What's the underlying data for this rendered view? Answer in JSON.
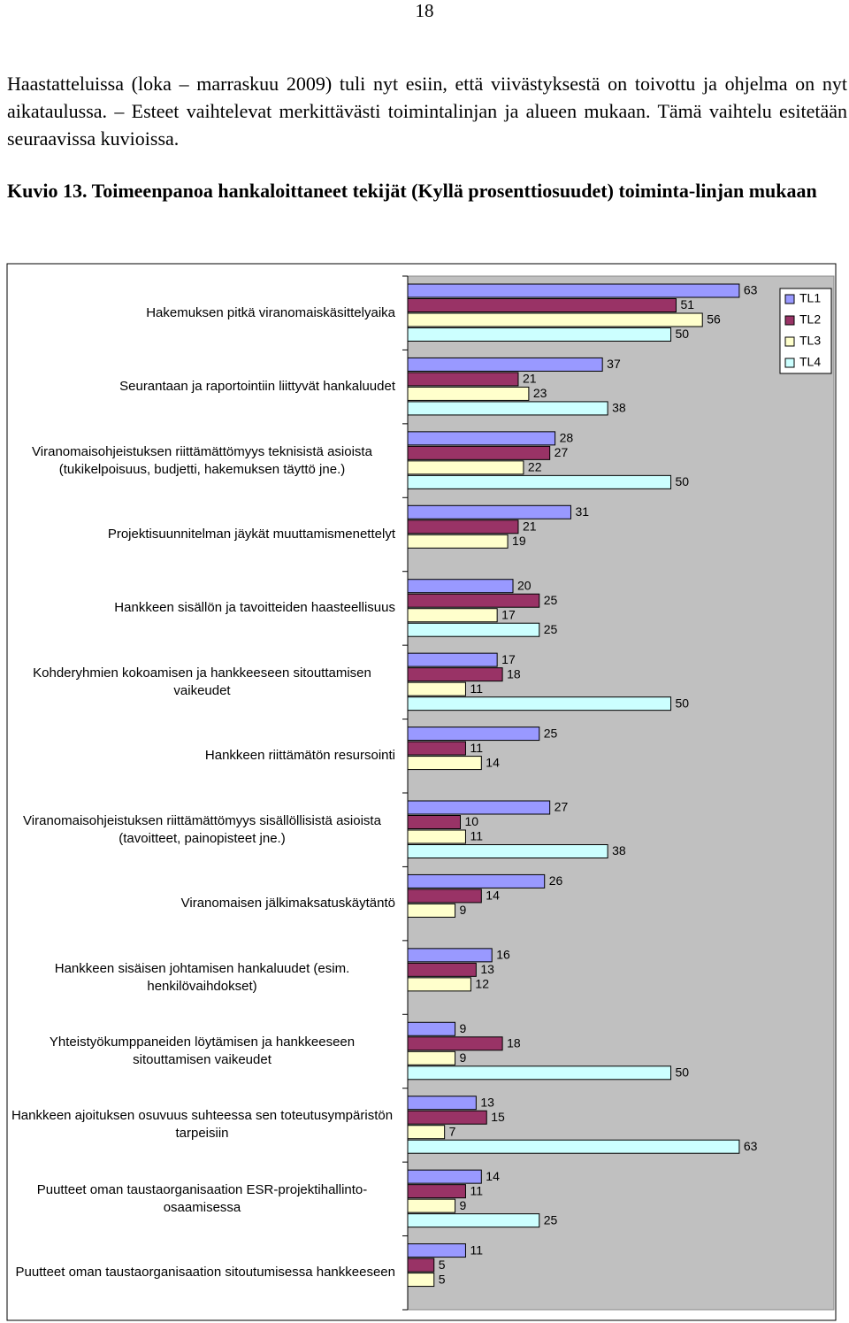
{
  "page_number": "18",
  "paragraph": "Haastatteluissa (loka – marraskuu 2009) tuli nyt esiin, että viivästyksestä on toivottu ja ohjelma on nyt aikataulussa. – Esteet vaihtelevat merkittävästi toimintalinjan ja alueen mukaan. Tämä vaihtelu esitetään seuraavissa kuvioissa.",
  "figure_caption": {
    "label": "Kuvio 13.",
    "title": "Toimeenpanoa hankaloittaneet tekijät (Kyllä prosenttiosuudet) toiminta-linjan mukaan"
  },
  "chart_data": {
    "type": "bar",
    "orientation": "horizontal",
    "categories": [
      "Hakemuksen pitkä viranomaiskäsittelyaika",
      "Seurantaan ja raportointiin liittyvät hankaluudet",
      "Viranomaisohjeistuksen riittämättömyys teknisistä asioista (tukikelpoisuus, budjetti, hakemuksen täyttö jne.)",
      "Projektisuunnitelman jäykät muuttamismenettelyt",
      "Hankkeen sisällön ja tavoitteiden haasteellisuus",
      "Kohderyhmien kokoamisen ja hankkeeseen sitouttamisen vaikeudet",
      "Hankkeen riittämätön resursointi",
      "Viranomaisohjeistuksen riittämättömyys sisällöllisistä asioista (tavoitteet, painopisteet jne.)",
      "Viranomaisen jälkimaksatuskäytäntö",
      "Hankkeen sisäisen johtamisen hankaluudet (esim. henkilövaihdokset)",
      "Yhteistyökumppaneiden löytämisen ja hankkeeseen sitouttamisen vaikeudet",
      "Hankkeen ajoituksen osuvuus suhteessa sen toteutusympäristön tarpeisiin",
      "Puutteet oman taustaorganisaation ESR-projektihallinto-osaamisessa",
      "Puutteet oman taustaorganisaation sitoutumisessa hankkeeseen"
    ],
    "series": [
      {
        "name": "TL1",
        "color": "#9999ff",
        "values": [
          63,
          37,
          28,
          31,
          20,
          17,
          25,
          27,
          26,
          16,
          9,
          13,
          14,
          11
        ]
      },
      {
        "name": "TL2",
        "color": "#993366",
        "values": [
          51,
          21,
          27,
          21,
          25,
          18,
          11,
          10,
          14,
          13,
          18,
          15,
          11,
          5
        ]
      },
      {
        "name": "TL3",
        "color": "#ffffcc",
        "values": [
          56,
          23,
          22,
          19,
          17,
          11,
          14,
          11,
          9,
          12,
          9,
          7,
          9,
          5
        ]
      },
      {
        "name": "TL4",
        "color": "#ccffff",
        "values": [
          50,
          38,
          50,
          null,
          25,
          50,
          null,
          38,
          null,
          null,
          50,
          63,
          25,
          null
        ]
      }
    ],
    "xlim": [
      0,
      81
    ],
    "legend": "top-right",
    "plot_background": "#c0c0c0"
  }
}
